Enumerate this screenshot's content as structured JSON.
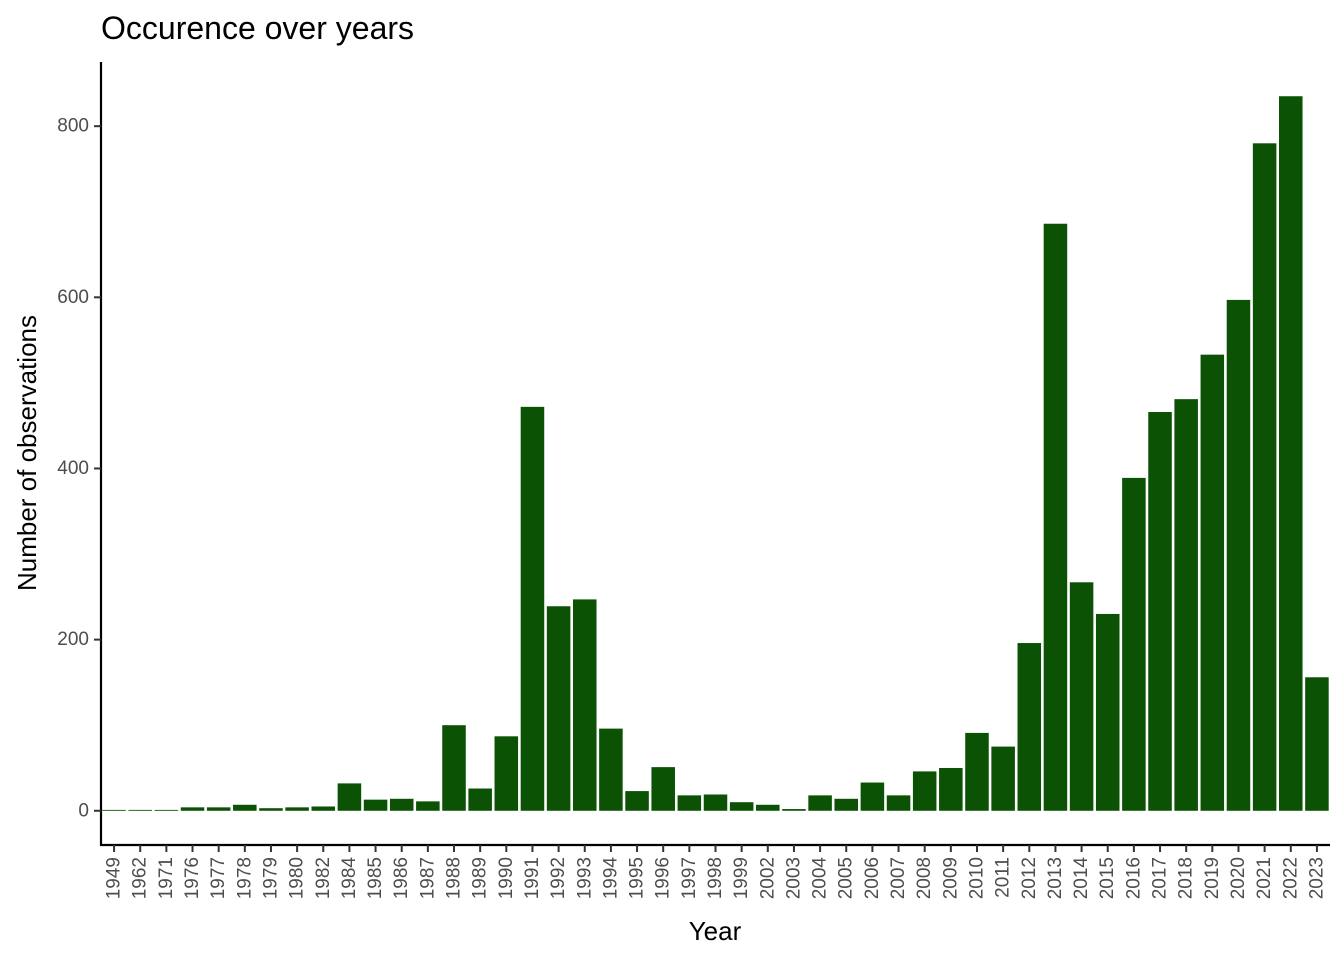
{
  "chart_data": {
    "type": "bar",
    "title": "Occurence over years",
    "xlabel": "Year",
    "ylabel": "Number of observations",
    "categories": [
      "1949",
      "1962",
      "1971",
      "1976",
      "1977",
      "1978",
      "1979",
      "1980",
      "1982",
      "1984",
      "1985",
      "1986",
      "1987",
      "1988",
      "1989",
      "1990",
      "1991",
      "1992",
      "1993",
      "1994",
      "1995",
      "1996",
      "1997",
      "1998",
      "1999",
      "2002",
      "2003",
      "2004",
      "2005",
      "2006",
      "2007",
      "2008",
      "2009",
      "2010",
      "2011",
      "2012",
      "2013",
      "2014",
      "2015",
      "2016",
      "2017",
      "2018",
      "2019",
      "2020",
      "2021",
      "2022",
      "2023"
    ],
    "values": [
      1,
      1,
      1,
      4,
      4,
      7,
      3,
      4,
      5,
      32,
      13,
      14,
      11,
      100,
      26,
      87,
      472,
      239,
      247,
      96,
      23,
      51,
      18,
      19,
      10,
      7,
      2,
      18,
      14,
      33,
      18,
      46,
      50,
      91,
      75,
      196,
      686,
      267,
      230,
      389,
      466,
      481,
      533,
      597,
      780,
      835,
      156
    ],
    "yticks": [
      0,
      200,
      400,
      600,
      800
    ],
    "ylim": [
      -40,
      875
    ],
    "bar_color": "#0b5205",
    "grid": false,
    "legend": "none"
  }
}
